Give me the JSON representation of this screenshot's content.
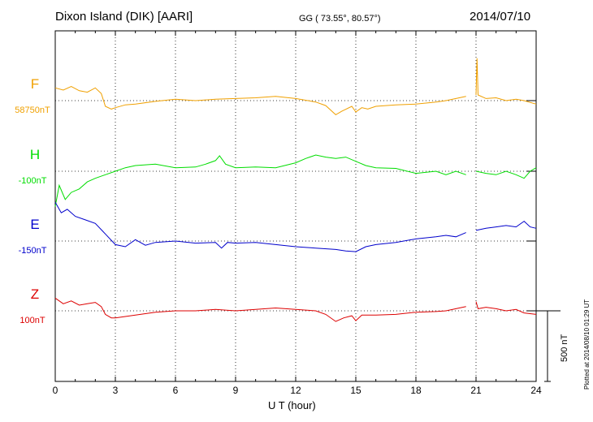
{
  "header": {
    "station": "Dixon Island (DIK)  [AARI]",
    "coords": "GG ( 73.55°,  80.57°)",
    "date": "2014/07/10"
  },
  "plotted_note": "Plotted at 2014/08/10 01:29 UT",
  "scale_label": "500 nT",
  "colors": {
    "F": "#f0a000",
    "H": "#00dd00",
    "E": "#0000cc",
    "Z": "#dd0000"
  },
  "chart_data": {
    "type": "line",
    "xlabel": "U T (hour)",
    "xlim": [
      0,
      24
    ],
    "x_ticks": [
      0,
      3,
      6,
      9,
      12,
      15,
      18,
      21,
      24
    ],
    "grid": "dotted vertical at every 3 hours; baselines per component",
    "scale_bar_nT": 500,
    "components": [
      {
        "name": "F",
        "baseline": "58750nT",
        "color": "#f0a000",
        "points": [
          [
            0,
            18
          ],
          [
            0.4,
            15
          ],
          [
            0.8,
            20
          ],
          [
            1.2,
            14
          ],
          [
            1.6,
            12
          ],
          [
            2.0,
            18
          ],
          [
            2.3,
            10
          ],
          [
            2.5,
            -8
          ],
          [
            2.8,
            -12
          ],
          [
            3.0,
            -10
          ],
          [
            3.5,
            -6
          ],
          [
            4,
            -5
          ],
          [
            5,
            -1
          ],
          [
            6,
            2
          ],
          [
            7,
            0
          ],
          [
            8,
            2
          ],
          [
            9,
            3
          ],
          [
            10,
            4
          ],
          [
            11,
            6
          ],
          [
            12,
            3
          ],
          [
            13,
            -2
          ],
          [
            13.5,
            -7
          ],
          [
            14.0,
            -20
          ],
          [
            14.3,
            -15
          ],
          [
            14.8,
            -8
          ],
          [
            15.0,
            -16
          ],
          [
            15.3,
            -10
          ],
          [
            15.6,
            -12
          ],
          [
            16,
            -8
          ],
          [
            17,
            -6
          ],
          [
            18,
            -5
          ],
          [
            19,
            -2
          ],
          [
            19.5,
            0
          ],
          [
            20,
            3
          ],
          [
            20.5,
            6
          ]
        ],
        "points2": [
          [
            21.0,
            8
          ],
          [
            21.05,
            60
          ],
          [
            21.1,
            8
          ],
          [
            21.5,
            3
          ],
          [
            22,
            4
          ],
          [
            22.5,
            0
          ],
          [
            23,
            2
          ],
          [
            23.4,
            0
          ],
          [
            24,
            -5
          ]
        ]
      },
      {
        "name": "H",
        "baseline": "-100nT",
        "color": "#00dd00",
        "points": [
          [
            0,
            -50
          ],
          [
            0.2,
            -20
          ],
          [
            0.5,
            -40
          ],
          [
            0.8,
            -30
          ],
          [
            1.2,
            -25
          ],
          [
            1.6,
            -15
          ],
          [
            2.0,
            -10
          ],
          [
            2.5,
            -5
          ],
          [
            3,
            0
          ],
          [
            3.5,
            5
          ],
          [
            4,
            8
          ],
          [
            5,
            10
          ],
          [
            6,
            5
          ],
          [
            7,
            6
          ],
          [
            7.5,
            10
          ],
          [
            8,
            15
          ],
          [
            8.2,
            22
          ],
          [
            8.5,
            10
          ],
          [
            9,
            5
          ],
          [
            10,
            6
          ],
          [
            11,
            5
          ],
          [
            12,
            12
          ],
          [
            12.5,
            18
          ],
          [
            13,
            23
          ],
          [
            13.5,
            20
          ],
          [
            14,
            18
          ],
          [
            14.5,
            20
          ],
          [
            15,
            14
          ],
          [
            15.5,
            8
          ],
          [
            16,
            5
          ],
          [
            17,
            4
          ],
          [
            18,
            -3
          ],
          [
            19,
            0
          ],
          [
            19.5,
            -5
          ],
          [
            20,
            0
          ],
          [
            20.5,
            -5
          ]
        ],
        "points2": [
          [
            21.0,
            0
          ],
          [
            21.5,
            -3
          ],
          [
            22,
            -5
          ],
          [
            22.5,
            0
          ],
          [
            23,
            -5
          ],
          [
            23.4,
            -10
          ],
          [
            23.7,
            0
          ],
          [
            24,
            5
          ]
        ]
      },
      {
        "name": "E",
        "baseline": "-150nT",
        "color": "#0000cc",
        "points": [
          [
            0,
            55
          ],
          [
            0.3,
            40
          ],
          [
            0.6,
            45
          ],
          [
            1,
            35
          ],
          [
            1.5,
            30
          ],
          [
            2,
            25
          ],
          [
            2.5,
            10
          ],
          [
            3,
            -5
          ],
          [
            3.5,
            -8
          ],
          [
            4,
            2
          ],
          [
            4.5,
            -6
          ],
          [
            5,
            -2
          ],
          [
            6,
            0
          ],
          [
            7,
            -3
          ],
          [
            8,
            -2
          ],
          [
            8.3,
            -10
          ],
          [
            8.6,
            -2
          ],
          [
            9,
            -3
          ],
          [
            10,
            -2
          ],
          [
            11,
            -5
          ],
          [
            12,
            -8
          ],
          [
            13,
            -10
          ],
          [
            14,
            -12
          ],
          [
            14.5,
            -14
          ],
          [
            15,
            -15
          ],
          [
            15.5,
            -8
          ],
          [
            16,
            -5
          ],
          [
            17,
            -2
          ],
          [
            18,
            3
          ],
          [
            19,
            6
          ],
          [
            19.5,
            8
          ],
          [
            20,
            6
          ],
          [
            20.5,
            12
          ]
        ],
        "points2": [
          [
            21.0,
            15
          ],
          [
            21.5,
            18
          ],
          [
            22,
            20
          ],
          [
            22.5,
            22
          ],
          [
            23,
            20
          ],
          [
            23.4,
            28
          ],
          [
            23.7,
            20
          ],
          [
            24,
            18
          ]
        ]
      },
      {
        "name": "Z",
        "baseline": "100nT",
        "color": "#dd0000",
        "points": [
          [
            0,
            18
          ],
          [
            0.4,
            10
          ],
          [
            0.8,
            14
          ],
          [
            1.2,
            8
          ],
          [
            1.6,
            10
          ],
          [
            2.0,
            12
          ],
          [
            2.3,
            6
          ],
          [
            2.5,
            -5
          ],
          [
            2.8,
            -10
          ],
          [
            3.0,
            -10
          ],
          [
            3.5,
            -8
          ],
          [
            4,
            -6
          ],
          [
            5,
            -2
          ],
          [
            6,
            0
          ],
          [
            7,
            0
          ],
          [
            8,
            2
          ],
          [
            9,
            0
          ],
          [
            10,
            2
          ],
          [
            11,
            4
          ],
          [
            12,
            2
          ],
          [
            13,
            0
          ],
          [
            13.5,
            -5
          ],
          [
            14,
            -15
          ],
          [
            14.4,
            -10
          ],
          [
            14.8,
            -7
          ],
          [
            15.0,
            -14
          ],
          [
            15.3,
            -6
          ],
          [
            16,
            -6
          ],
          [
            17,
            -5
          ],
          [
            18,
            -2
          ],
          [
            19,
            -1
          ],
          [
            19.5,
            0
          ],
          [
            20,
            3
          ],
          [
            20.5,
            6
          ]
        ],
        "points2": [
          [
            21.0,
            13
          ],
          [
            21.1,
            3
          ],
          [
            21.5,
            5
          ],
          [
            22,
            3
          ],
          [
            22.5,
            0
          ],
          [
            23,
            2
          ],
          [
            23.4,
            -3
          ],
          [
            24,
            -5
          ]
        ]
      }
    ]
  }
}
